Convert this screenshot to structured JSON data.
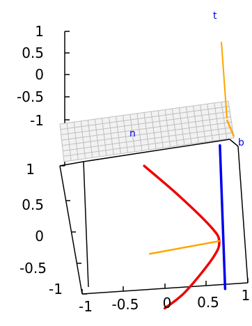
{
  "chart_data": {
    "type": "line",
    "title": "",
    "projection": "3d",
    "grid": false,
    "legend": "none",
    "z_ticks": [
      "1",
      "0.5",
      "0",
      "-0.5",
      "-1"
    ],
    "y_ticks": [
      "1",
      "0.5",
      "0",
      "-0.5",
      "-1"
    ],
    "x_ticks": [
      "-1",
      "-0.5",
      "0",
      "0.5",
      "1"
    ],
    "series": [
      {
        "kind": "curve",
        "color": "#ee0000",
        "points": [
          [
            -0.2,
            0.8,
            1.0
          ],
          [
            0.25,
            0.6,
            0.5
          ],
          [
            0.65,
            0.4,
            0.0
          ],
          [
            0.75,
            0.3,
            -0.2
          ],
          [
            0.65,
            0.2,
            -0.4
          ],
          [
            0.25,
            0.05,
            -0.85
          ],
          [
            -0.05,
            -0.05,
            -1.0
          ]
        ]
      },
      {
        "kind": "tangent-line",
        "color": "#0000ee",
        "points": [
          [
            0.85,
            0.9,
            1.05
          ],
          [
            0.8,
            0.1,
            -1.0
          ]
        ]
      },
      {
        "kind": "normal-segment",
        "color": "#ffa500",
        "points": [
          [
            0.75,
            0.3,
            -0.2
          ],
          [
            -0.2,
            0.3,
            -0.25
          ]
        ]
      },
      {
        "kind": "normal-plane-surface",
        "color": "#bebebe"
      }
    ],
    "vector_labels": [
      {
        "text": "t",
        "color": "#0000ee"
      },
      {
        "text": "n",
        "color": "#0000ee"
      },
      {
        "text": "b",
        "color": "#0000ee"
      }
    ]
  }
}
